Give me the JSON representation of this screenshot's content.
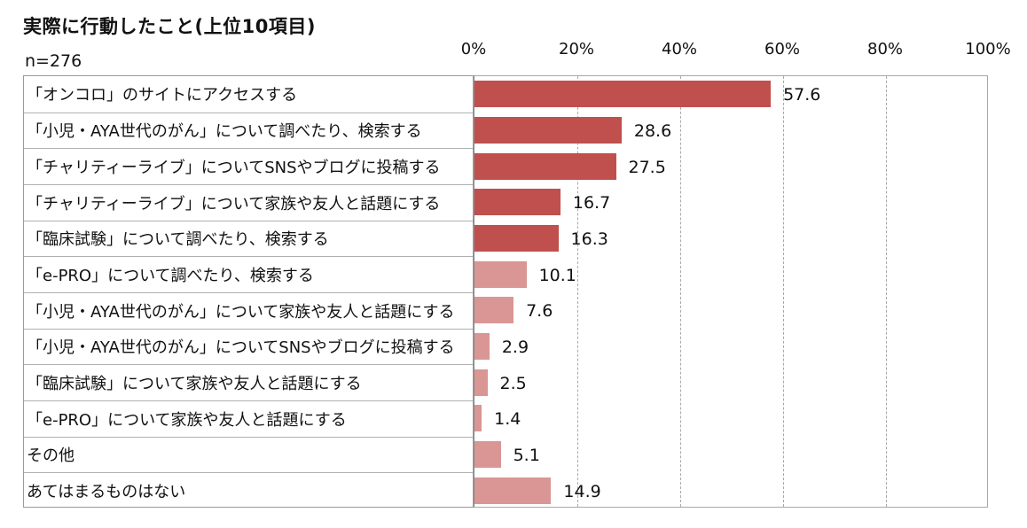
{
  "title": "実際に行動したこと(上位10項目)",
  "sample_label": "n=276",
  "colors": {
    "dark_bar": "#c0504d",
    "light_bar": "#d99694"
  },
  "chart_data": {
    "type": "bar",
    "orientation": "horizontal",
    "xlim": [
      0,
      100
    ],
    "xticks": [
      "0%",
      "20%",
      "40%",
      "60%",
      "80%",
      "100%"
    ],
    "grid": true,
    "categories": [
      "「オンコロ」のサイトにアクセスする",
      "「小児・AYA世代のがん」について調べたり、検索する",
      "「チャリティーライブ」についてSNSやブログに投稿する",
      "「チャリティーライブ」について家族や友人と話題にする",
      "「臨床試験」について調べたり、検索する",
      "「e-PRO」について調べたり、検索する",
      "「小児・AYA世代のがん」について家族や友人と話題にする",
      "「小児・AYA世代のがん」についてSNSやブログに投稿する",
      "「臨床試験」について家族や友人と話題にする",
      "「e-PRO」について家族や友人と話題にする",
      "その他",
      "あてはまるものはない"
    ],
    "values": [
      57.6,
      28.6,
      27.5,
      16.7,
      16.3,
      10.1,
      7.6,
      2.9,
      2.5,
      1.4,
      5.1,
      14.9
    ],
    "value_labels": [
      "57.6",
      "28.6",
      "27.5",
      "16.7",
      "16.3",
      "10.1",
      "7.6",
      "2.9",
      "2.5",
      "1.4",
      "5.1",
      "14.9"
    ],
    "bar_shades": [
      "dark",
      "dark",
      "dark",
      "dark",
      "dark",
      "light",
      "light",
      "light",
      "light",
      "light",
      "light",
      "light"
    ]
  }
}
